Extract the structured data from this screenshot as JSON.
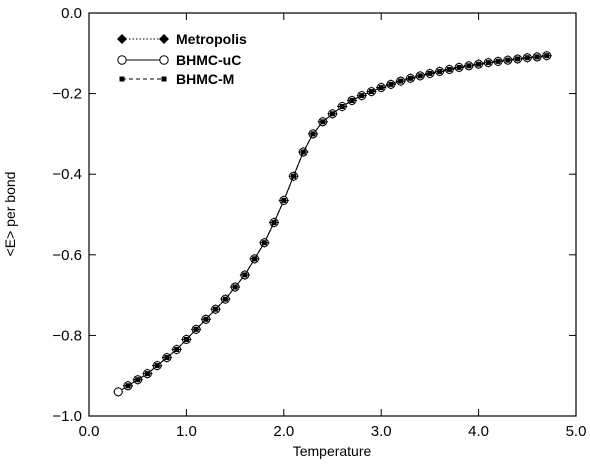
{
  "chart_data": {
    "type": "line",
    "title": "",
    "xlabel": "Temperature",
    "ylabel": "<E> per bond",
    "xlim": [
      0.0,
      5.0
    ],
    "ylim": [
      -1.0,
      0.0
    ],
    "x_ticks": [
      0.0,
      1.0,
      2.0,
      3.0,
      4.0,
      5.0
    ],
    "x_tick_labels": [
      "0.0",
      "1.0",
      "2.0",
      "3.0",
      "4.0",
      "5.0"
    ],
    "y_ticks": [
      -1.0,
      -0.8,
      -0.6,
      -0.4,
      -0.2,
      0.0
    ],
    "y_tick_labels": [
      "−1.0",
      "−0.8",
      "−0.6",
      "−0.4",
      "−0.2",
      "0.0"
    ],
    "grid": false,
    "legend_position": "top-left",
    "x": [
      0.3,
      0.4,
      0.5,
      0.6,
      0.7,
      0.8,
      0.9,
      1.0,
      1.1,
      1.2,
      1.3,
      1.4,
      1.5,
      1.6,
      1.7,
      1.8,
      1.9,
      2.0,
      2.1,
      2.2,
      2.3,
      2.4,
      2.5,
      2.6,
      2.7,
      2.8,
      2.9,
      3.0,
      3.1,
      3.2,
      3.3,
      3.4,
      3.5,
      3.6,
      3.7,
      3.8,
      3.9,
      4.0,
      4.1,
      4.2,
      4.3,
      4.4,
      4.5,
      4.6,
      4.7
    ],
    "y": [
      -0.94,
      -0.925,
      -0.91,
      -0.895,
      -0.875,
      -0.855,
      -0.835,
      -0.81,
      -0.785,
      -0.76,
      -0.735,
      -0.71,
      -0.68,
      -0.65,
      -0.61,
      -0.57,
      -0.52,
      -0.465,
      -0.405,
      -0.345,
      -0.3,
      -0.27,
      -0.25,
      -0.232,
      -0.217,
      -0.205,
      -0.195,
      -0.185,
      -0.177,
      -0.169,
      -0.162,
      -0.156,
      -0.15,
      -0.145,
      -0.14,
      -0.135,
      -0.131,
      -0.127,
      -0.123,
      -0.12,
      -0.117,
      -0.114,
      -0.111,
      -0.109,
      -0.106
    ],
    "series": [
      {
        "name": "Metropolis",
        "marker": "diamond-filled",
        "line": "dotted",
        "x_start": 0.3
      },
      {
        "name": "BHMC-uC",
        "marker": "circle-open",
        "line": "solid",
        "x_start": 0.3
      },
      {
        "name": "BHMC-M",
        "marker": "square-filled",
        "line": "dashed",
        "x_start": 0.4
      }
    ]
  }
}
